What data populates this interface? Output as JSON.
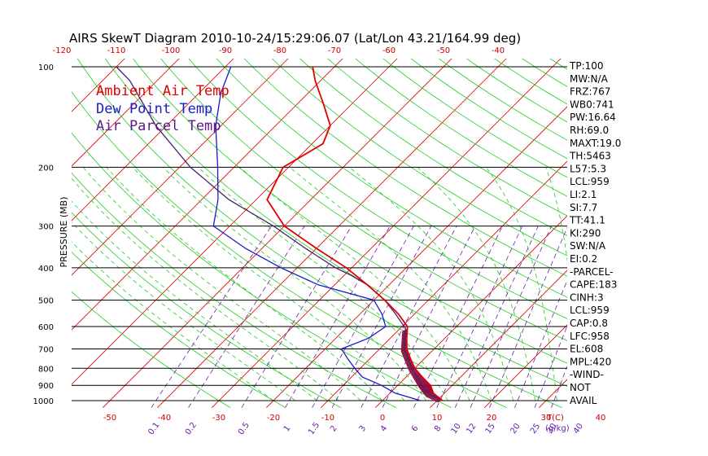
{
  "chart_data": {
    "type": "line",
    "title": "AIRS SkewT Diagram 2010-10-24/15:29:06.07 (Lat/Lon 43.21/164.99 deg)",
    "ylabel": "PRESSURE (MB)",
    "xlabel": "T(C)",
    "mixing_ratio_unit": "(g/kg)",
    "pressure_ticks": [
      100,
      200,
      300,
      400,
      500,
      600,
      700,
      800,
      900,
      1000
    ],
    "top_temp_ticks": [
      -120,
      -110,
      -100,
      -90,
      -80,
      -70,
      -60,
      -50,
      -40
    ],
    "bottom_temp_ticks": [
      -50,
      -40,
      -30,
      -20,
      -10,
      0,
      10,
      20,
      30,
      40
    ],
    "mixing_ratio_ticks": [
      "0.1",
      "0.2",
      "0.5",
      "1",
      "1.5",
      "2",
      "3",
      "4",
      "6",
      "8",
      "10",
      "12",
      "15",
      "20",
      "25",
      "30",
      "40"
    ],
    "legend": [
      {
        "label": "Ambient Air Temp",
        "color": "#e00000"
      },
      {
        "label": "Dew Point Temp",
        "color": "#1a1acc"
      },
      {
        "label": "Air Parcel Temp",
        "color": "#5a1a8a"
      }
    ],
    "colors": {
      "temp": "#e00000",
      "dew": "#1a1acc",
      "parcel": "#4a2070",
      "isotherm": "#dd0000",
      "dry_adiabat": "#22cc22",
      "moist_adiabat": "#22cc22",
      "mixing_ratio": "#6a1fa8",
      "isobar": "#000000",
      "hatch": "#8a0a3a"
    },
    "series": [
      {
        "name": "Ambient Air Temp",
        "points": [
          [
            1000,
            11
          ],
          [
            950,
            8
          ],
          [
            900,
            6
          ],
          [
            850,
            3
          ],
          [
            800,
            0
          ],
          [
            750,
            -2.5
          ],
          [
            700,
            -5
          ],
          [
            650,
            -7
          ],
          [
            600,
            -9
          ],
          [
            550,
            -13
          ],
          [
            500,
            -18
          ],
          [
            450,
            -24
          ],
          [
            400,
            -31
          ],
          [
            350,
            -40
          ],
          [
            300,
            -50
          ],
          [
            250,
            -58
          ],
          [
            200,
            -61
          ],
          [
            170,
            -58
          ],
          [
            150,
            -60
          ],
          [
            130,
            -65
          ],
          [
            110,
            -71
          ],
          [
            100,
            -74
          ]
        ]
      },
      {
        "name": "Dew Point Temp",
        "points": [
          [
            1000,
            7
          ],
          [
            950,
            1
          ],
          [
            900,
            -3
          ],
          [
            850,
            -8
          ],
          [
            800,
            -11
          ],
          [
            750,
            -14
          ],
          [
            700,
            -17
          ],
          [
            650,
            -14
          ],
          [
            600,
            -13
          ],
          [
            550,
            -16
          ],
          [
            500,
            -20
          ],
          [
            450,
            -33
          ],
          [
            400,
            -43
          ],
          [
            350,
            -53
          ],
          [
            300,
            -63
          ],
          [
            250,
            -67
          ],
          [
            200,
            -73
          ],
          [
            150,
            -81
          ],
          [
            120,
            -86
          ],
          [
            100,
            -89
          ]
        ]
      },
      {
        "name": "Air Parcel Temp",
        "points": [
          [
            1000,
            11
          ],
          [
            959,
            7.5
          ],
          [
            900,
            4.5
          ],
          [
            800,
            -0.5
          ],
          [
            700,
            -5.5
          ],
          [
            608,
            -9
          ],
          [
            550,
            -13.5
          ],
          [
            500,
            -18
          ],
          [
            450,
            -24
          ],
          [
            420,
            -29
          ],
          [
            400,
            -33
          ],
          [
            350,
            -42
          ],
          [
            300,
            -52
          ],
          [
            250,
            -65
          ],
          [
            200,
            -78
          ],
          [
            150,
            -92
          ],
          [
            110,
            -105
          ],
          [
            100,
            -110
          ]
        ]
      }
    ]
  },
  "stats": [
    "TP:100",
    "MW:N/A",
    "FRZ:767",
    "WB0:741",
    "PW:16.64",
    "RH:69.0",
    "MAXT:19.0",
    "TH:5463",
    "L57:5.3",
    "LCL:959",
    "LI:2.1",
    "SI:7.7",
    "TT:41.1",
    "KI:290",
    "SW:N/A",
    "EI:0.2",
    "-PARCEL-",
    "CAPE:183",
    "CINH:3",
    "LCL:959",
    "CAP:0.8",
    "LFC:958",
    "EL:608",
    "MPL:420",
    "-WIND-",
    "NOT",
    "AVAIL"
  ]
}
